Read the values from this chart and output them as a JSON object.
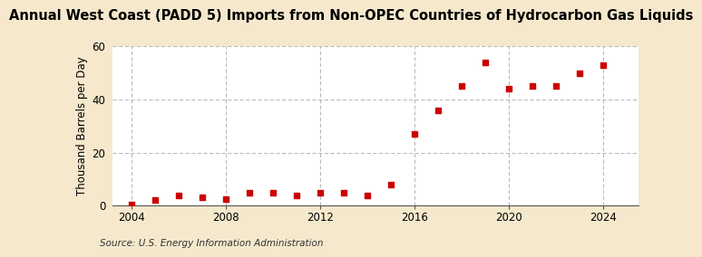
{
  "title": "Annual West Coast (PADD 5) Imports from Non-OPEC Countries of Hydrocarbon Gas Liquids",
  "ylabel": "Thousand Barrels per Day",
  "source": "Source: U.S. Energy Information Administration",
  "years": [
    2004,
    2005,
    2006,
    2007,
    2008,
    2009,
    2010,
    2011,
    2012,
    2013,
    2014,
    2015,
    2016,
    2017,
    2018,
    2019,
    2020,
    2021,
    2022,
    2023,
    2024
  ],
  "values": [
    0.5,
    2,
    4,
    3,
    2.5,
    5,
    5,
    4,
    5,
    5,
    4,
    8,
    27,
    36,
    45,
    54,
    44,
    45,
    45,
    50,
    53
  ],
  "dot_color": "#cc0000",
  "bg_color": "#f5e8cc",
  "plot_bg_color": "#ffffff",
  "grid_color": "#aaaaaa",
  "xlim": [
    2003.2,
    2025.5
  ],
  "ylim": [
    0,
    60
  ],
  "xticks": [
    2004,
    2008,
    2012,
    2016,
    2020,
    2024
  ],
  "yticks": [
    0,
    20,
    40,
    60
  ],
  "title_fontsize": 10.5,
  "label_fontsize": 8.5,
  "tick_fontsize": 8.5,
  "source_fontsize": 7.5,
  "marker_size": 14
}
